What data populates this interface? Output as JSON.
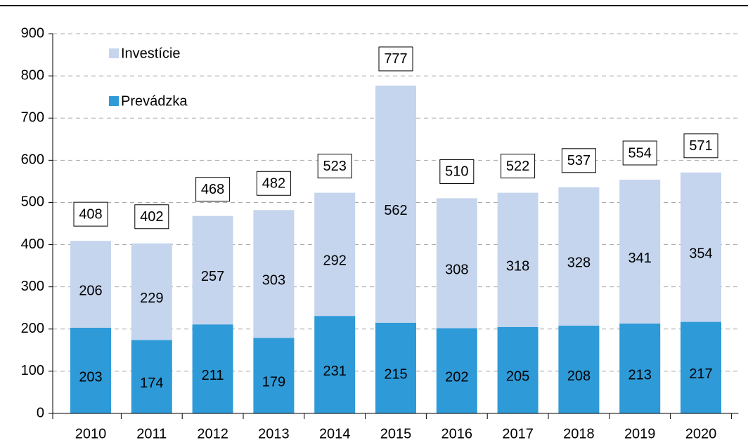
{
  "chart_data": {
    "type": "stacked_bar",
    "categories": [
      "2010",
      "2011",
      "2012",
      "2013",
      "2014",
      "2015",
      "2016",
      "2017",
      "2018",
      "2019",
      "2020"
    ],
    "series": [
      {
        "name": "Prevádzka",
        "color": "#2e9ad8",
        "values": [
          203,
          174,
          211,
          179,
          231,
          215,
          202,
          205,
          208,
          213,
          217
        ]
      },
      {
        "name": "Investície",
        "color": "#c5d5ee",
        "values": [
          206,
          229,
          257,
          303,
          292,
          562,
          308,
          318,
          328,
          341,
          354
        ]
      }
    ],
    "totals": [
      408,
      402,
      468,
      482,
      523,
      777,
      510,
      522,
      537,
      554,
      571
    ],
    "ylim": [
      0,
      900
    ],
    "yticks": [
      0,
      100,
      200,
      300,
      400,
      500,
      600,
      700,
      800,
      900
    ],
    "grid": true
  }
}
